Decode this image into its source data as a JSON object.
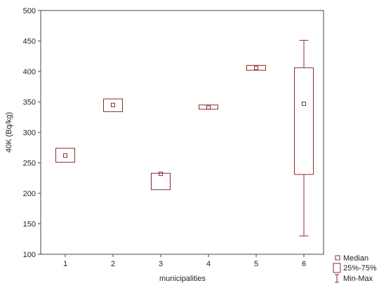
{
  "chart_data": {
    "type": "box",
    "title": "",
    "xlabel": "municipalities",
    "ylabel": "40K (Bq/kg)",
    "ylim": [
      100,
      500
    ],
    "yticks": [
      100,
      150,
      200,
      250,
      300,
      350,
      400,
      450,
      500
    ],
    "categories": [
      "1",
      "2",
      "3",
      "4",
      "5",
      "6"
    ],
    "groups": [
      {
        "category": "1",
        "median": 262,
        "q1": 251,
        "q3": 274
      },
      {
        "category": "2",
        "median": 345,
        "q1": 334,
        "q3": 355
      },
      {
        "category": "3",
        "median": 232,
        "q1": 206,
        "q3": 233
      },
      {
        "category": "4",
        "median": 341,
        "q1": 338,
        "q3": 345
      },
      {
        "category": "5",
        "median": 406,
        "q1": 402,
        "q3": 410
      },
      {
        "category": "6",
        "median": 347,
        "q1": 231,
        "q3": 406,
        "min": 130,
        "max": 451
      }
    ],
    "grid": false,
    "legend_position": "bottom-right",
    "legend": [
      "Median",
      "25%-75%",
      "Min-Max"
    ],
    "color": "#8b2b2b"
  }
}
